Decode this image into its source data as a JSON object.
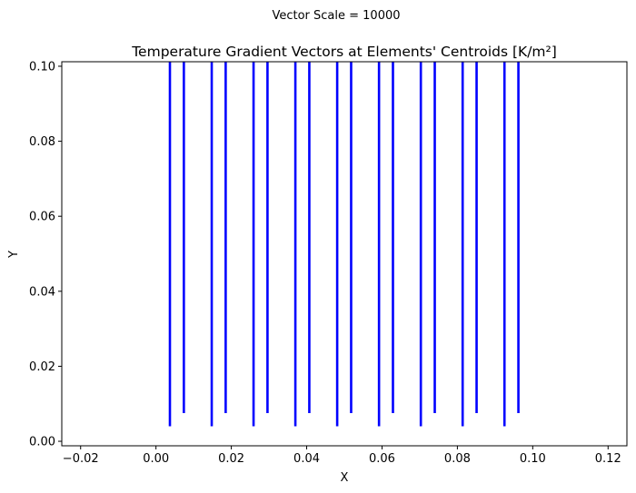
{
  "figure": {
    "suptitle": "Vector Scale = 10000"
  },
  "chart_data": {
    "type": "quiver",
    "title": "Temperature Gradient Vectors at Elements' Centroids [K/m²]",
    "xlabel": "X",
    "ylabel": "Y",
    "xlim": [
      -0.025,
      0.125
    ],
    "ylim": [
      -0.0012,
      0.1012
    ],
    "xticks": [
      -0.02,
      0.0,
      0.02,
      0.04,
      0.06,
      0.08,
      0.1,
      0.12
    ],
    "xtick_labels": [
      "−0.02",
      "0.00",
      "0.02",
      "0.04",
      "0.06",
      "0.08",
      "0.10",
      "0.12"
    ],
    "yticks": [
      0.0,
      0.02,
      0.04,
      0.06,
      0.08,
      0.1
    ],
    "ytick_labels": [
      "0.00",
      "0.02",
      "0.04",
      "0.06",
      "0.08",
      "0.10"
    ],
    "grid": false,
    "vector_color": "#0000ff",
    "vectors": [
      {
        "x": 0.0037,
        "y": 0.004,
        "dx": 0,
        "dy": 0.0972
      },
      {
        "x": 0.0074,
        "y": 0.0075,
        "dx": 0,
        "dy": 0.0937
      },
      {
        "x": 0.0148,
        "y": 0.004,
        "dx": 0,
        "dy": 0.0972
      },
      {
        "x": 0.0185,
        "y": 0.0075,
        "dx": 0,
        "dy": 0.0937
      },
      {
        "x": 0.0259,
        "y": 0.004,
        "dx": 0,
        "dy": 0.0972
      },
      {
        "x": 0.0296,
        "y": 0.0075,
        "dx": 0,
        "dy": 0.0937
      },
      {
        "x": 0.037,
        "y": 0.004,
        "dx": 0,
        "dy": 0.0972
      },
      {
        "x": 0.0407,
        "y": 0.0075,
        "dx": 0,
        "dy": 0.0937
      },
      {
        "x": 0.0481,
        "y": 0.004,
        "dx": 0,
        "dy": 0.0972
      },
      {
        "x": 0.0518,
        "y": 0.0075,
        "dx": 0,
        "dy": 0.0937
      },
      {
        "x": 0.0592,
        "y": 0.004,
        "dx": 0,
        "dy": 0.0972
      },
      {
        "x": 0.0629,
        "y": 0.0075,
        "dx": 0,
        "dy": 0.0937
      },
      {
        "x": 0.0703,
        "y": 0.004,
        "dx": 0,
        "dy": 0.0972
      },
      {
        "x": 0.074,
        "y": 0.0075,
        "dx": 0,
        "dy": 0.0937
      },
      {
        "x": 0.0814,
        "y": 0.004,
        "dx": 0,
        "dy": 0.0972
      },
      {
        "x": 0.0851,
        "y": 0.0075,
        "dx": 0,
        "dy": 0.0937
      },
      {
        "x": 0.0925,
        "y": 0.004,
        "dx": 0,
        "dy": 0.0972
      },
      {
        "x": 0.0962,
        "y": 0.0075,
        "dx": 0,
        "dy": 0.0937
      }
    ]
  }
}
